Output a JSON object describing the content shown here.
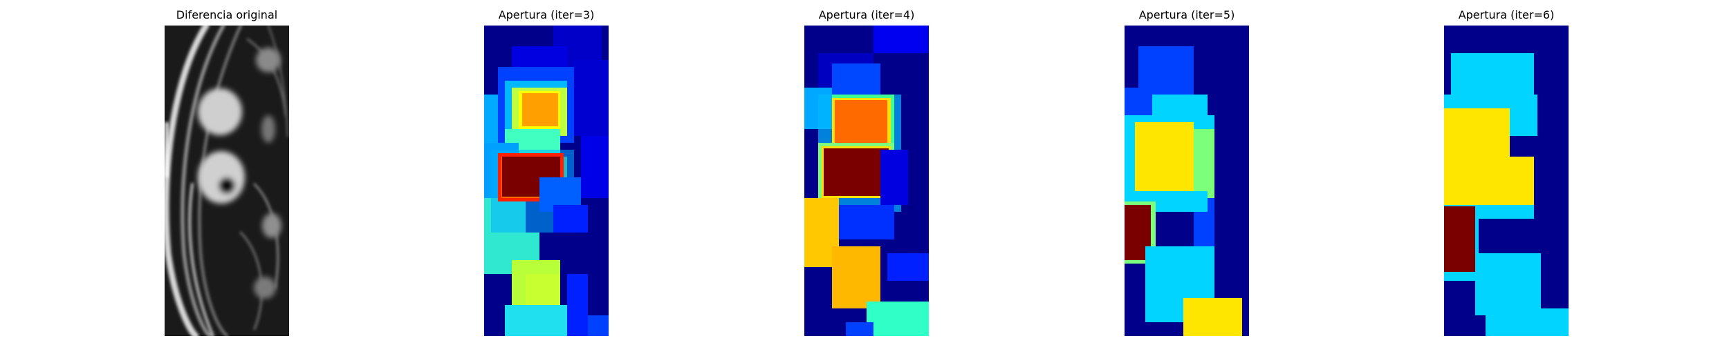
{
  "figure": {
    "panels": [
      {
        "title": "Diferencia original",
        "kind": "grayscale",
        "icon": "grayscale-image"
      },
      {
        "title": "Apertura (iter=3)",
        "kind": "jet-colormap",
        "icon": "colormap-image"
      },
      {
        "title": "Apertura (iter=4)",
        "kind": "jet-colormap",
        "icon": "colormap-image"
      },
      {
        "title": "Apertura (iter=5)",
        "kind": "jet-colormap",
        "icon": "colormap-image"
      },
      {
        "title": "Apertura (iter=6)",
        "kind": "jet-colormap",
        "icon": "colormap-image"
      }
    ],
    "colors": {
      "background": "#ffffff",
      "jet_dark_blue": "#00008b",
      "jet_blue": "#0033ff",
      "jet_cyan": "#00d4ff",
      "jet_green": "#7cff7a",
      "jet_yellow": "#ffe600",
      "jet_orange": "#ff6a00",
      "jet_dark_red": "#7a0000",
      "gray_dark": "#000000",
      "gray_light": "#e0e0e0"
    }
  }
}
